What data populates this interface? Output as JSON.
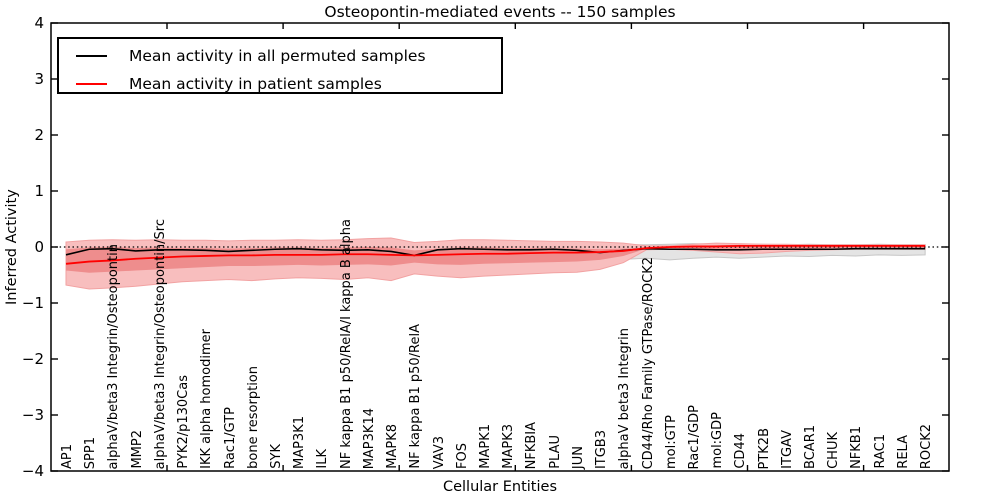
{
  "title": "Osteopontin-mediated events -- 150 samples",
  "axes": {
    "y_label": "Inferred Activity",
    "x_label": "Cellular Entities",
    "y_ticks": [
      "4",
      "3",
      "2",
      "1",
      "0",
      "−1",
      "−2",
      "−3",
      "−4"
    ],
    "y_tick_values": [
      4,
      3,
      2,
      1,
      0,
      -1,
      -2,
      -3,
      -4
    ]
  },
  "legend": {
    "items": [
      {
        "label": "Mean activity in all permuted samples",
        "color": "#000000"
      },
      {
        "label": "Mean activity in patient samples",
        "color": "#ff0000"
      }
    ]
  },
  "colors": {
    "permuted_line": "#000000",
    "patient_line": "#ff0000",
    "patient_band_outer_fill": "#f8bebe",
    "patient_band_outer_edge": "#f2a2a2",
    "patient_band_inner_fill": "#ee8d8d",
    "permuted_band_fill": "#e4e4e4",
    "permuted_band_edge": "#c6c6c6",
    "zero_line": "#000000",
    "frame": "#000000"
  },
  "chart_data": {
    "type": "line",
    "title": "Osteopontin-mediated events -- 150 samples",
    "xlabel": "Cellular Entities",
    "ylabel": "Inferred Activity",
    "ylim": [
      -4,
      4
    ],
    "grid": false,
    "legend_position": "upper left",
    "zero_reference_line": 0,
    "categories": [
      "AP1",
      "SPP1",
      "alphaV/beta3 Integrin/Osteopontin",
      "MMP2",
      "alphaV/beta3 Integrin/Osteopontin/Src",
      "PYK2/p130Cas",
      "IKK alpha homodimer",
      "Rac1/GTP",
      "bone resorption",
      "SYK",
      "MAP3K1",
      "ILK",
      "NF kappa B1 p50/RelA/I kappa B alpha",
      "MAP3K14",
      "MAPK8",
      "NF kappa B1 p50/RelA",
      "VAV3",
      "FOS",
      "MAPK1",
      "MAPK3",
      "NFKBIA",
      "PLAU",
      "JUN",
      "ITGB3",
      "alphaV beta3 Integrin",
      "CD44/Rho Family GTPase/ROCK2",
      "mol:GTP",
      "Rac1/GDP",
      "mol:GDP",
      "CD44",
      "PTK2B",
      "ITGAV",
      "BCAR1",
      "CHUK",
      "NFKB1",
      "RAC1",
      "RELA",
      "ROCK2"
    ],
    "series": [
      {
        "name": "Mean activity in all permuted samples",
        "color": "#000000",
        "values": [
          -0.14,
          -0.04,
          -0.03,
          -0.07,
          -0.05,
          -0.05,
          -0.06,
          -0.08,
          -0.06,
          -0.04,
          -0.03,
          -0.05,
          -0.06,
          -0.05,
          -0.08,
          -0.15,
          -0.05,
          -0.03,
          -0.04,
          -0.05,
          -0.05,
          -0.04,
          -0.06,
          -0.1,
          -0.06,
          -0.03,
          -0.04,
          -0.04,
          -0.05,
          -0.05,
          -0.04,
          -0.04,
          -0.04,
          -0.04,
          -0.03,
          -0.03,
          -0.03,
          -0.03
        ]
      },
      {
        "name": "Mean activity in patient samples",
        "color": "#ff0000",
        "values": [
          -0.3,
          -0.26,
          -0.24,
          -0.21,
          -0.19,
          -0.17,
          -0.16,
          -0.15,
          -0.15,
          -0.14,
          -0.14,
          -0.14,
          -0.13,
          -0.13,
          -0.14,
          -0.15,
          -0.14,
          -0.13,
          -0.12,
          -0.12,
          -0.11,
          -0.1,
          -0.1,
          -0.09,
          -0.07,
          -0.02,
          0.0,
          0.01,
          0.01,
          0.02,
          0.02,
          0.02,
          0.02,
          0.02,
          0.02,
          0.02,
          0.02,
          0.02
        ]
      }
    ],
    "bands": [
      {
        "name": "permuted-samples-range",
        "fill": "#e4e4e4",
        "edge": "#c6c6c6",
        "top": [
          0.05,
          0.05,
          0.05,
          0.05,
          0.05,
          0.05,
          0.05,
          0.05,
          0.05,
          0.05,
          0.05,
          0.05,
          0.05,
          0.05,
          0.05,
          0.05,
          0.05,
          0.05,
          0.05,
          0.05,
          0.05,
          0.05,
          0.05,
          0.05,
          0.04,
          0.04,
          0.05,
          0.06,
          0.05,
          0.05,
          0.05,
          0.04,
          0.05,
          0.04,
          0.04,
          0.05,
          0.04,
          0.04
        ],
        "bottom": [
          -0.15,
          -0.15,
          -0.15,
          -0.15,
          -0.15,
          -0.15,
          -0.15,
          -0.15,
          -0.15,
          -0.15,
          -0.15,
          -0.15,
          -0.15,
          -0.15,
          -0.15,
          -0.15,
          -0.15,
          -0.15,
          -0.15,
          -0.15,
          -0.15,
          -0.15,
          -0.15,
          -0.18,
          -0.22,
          -0.2,
          -0.23,
          -0.2,
          -0.18,
          -0.2,
          -0.18,
          -0.16,
          -0.17,
          -0.15,
          -0.16,
          -0.14,
          -0.15,
          -0.14
        ]
      },
      {
        "name": "patient-samples-range-outer",
        "fill": "#f8bebe",
        "edge": "#f2a2a2",
        "top": [
          0.09,
          0.12,
          0.13,
          0.12,
          0.13,
          0.12,
          0.12,
          0.11,
          0.12,
          0.12,
          0.13,
          0.12,
          0.13,
          0.15,
          0.16,
          0.08,
          0.1,
          0.13,
          0.13,
          0.12,
          0.11,
          0.1,
          0.1,
          0.09,
          0.07,
          0.02,
          0.02,
          0.05,
          0.07,
          0.06,
          0.05,
          0.05,
          0.04,
          0.04,
          0.04,
          0.04,
          0.04,
          0.04
        ],
        "bottom": [
          -0.68,
          -0.75,
          -0.73,
          -0.7,
          -0.66,
          -0.62,
          -0.6,
          -0.58,
          -0.6,
          -0.57,
          -0.55,
          -0.56,
          -0.58,
          -0.55,
          -0.6,
          -0.48,
          -0.52,
          -0.55,
          -0.52,
          -0.5,
          -0.48,
          -0.46,
          -0.45,
          -0.4,
          -0.28,
          -0.05,
          -0.04,
          -0.06,
          -0.09,
          -0.12,
          -0.11,
          -0.08,
          -0.06,
          -0.05,
          -0.04,
          -0.04,
          -0.04,
          -0.04
        ]
      },
      {
        "name": "patient-samples-range-inner",
        "fill": "#ee8d8d",
        "edge": "none",
        "top": [
          -0.04,
          -0.01,
          0.0,
          -0.02,
          -0.01,
          -0.02,
          -0.02,
          -0.03,
          -0.02,
          -0.01,
          -0.01,
          -0.02,
          -0.01,
          0.0,
          -0.01,
          -0.06,
          -0.03,
          -0.01,
          -0.01,
          -0.02,
          -0.02,
          -0.02,
          -0.03,
          -0.04,
          -0.03,
          -0.01,
          0.01,
          0.02,
          0.03,
          0.04,
          0.03,
          0.03,
          0.03,
          0.03,
          0.03,
          0.03,
          0.03,
          0.03
        ],
        "bottom": [
          -0.42,
          -0.46,
          -0.44,
          -0.42,
          -0.4,
          -0.38,
          -0.36,
          -0.34,
          -0.34,
          -0.33,
          -0.32,
          -0.33,
          -0.32,
          -0.31,
          -0.33,
          -0.28,
          -0.31,
          -0.32,
          -0.3,
          -0.29,
          -0.28,
          -0.27,
          -0.26,
          -0.23,
          -0.16,
          -0.03,
          -0.02,
          -0.02,
          -0.04,
          -0.06,
          -0.05,
          -0.04,
          -0.03,
          -0.02,
          -0.01,
          -0.01,
          -0.01,
          -0.01
        ]
      }
    ]
  }
}
